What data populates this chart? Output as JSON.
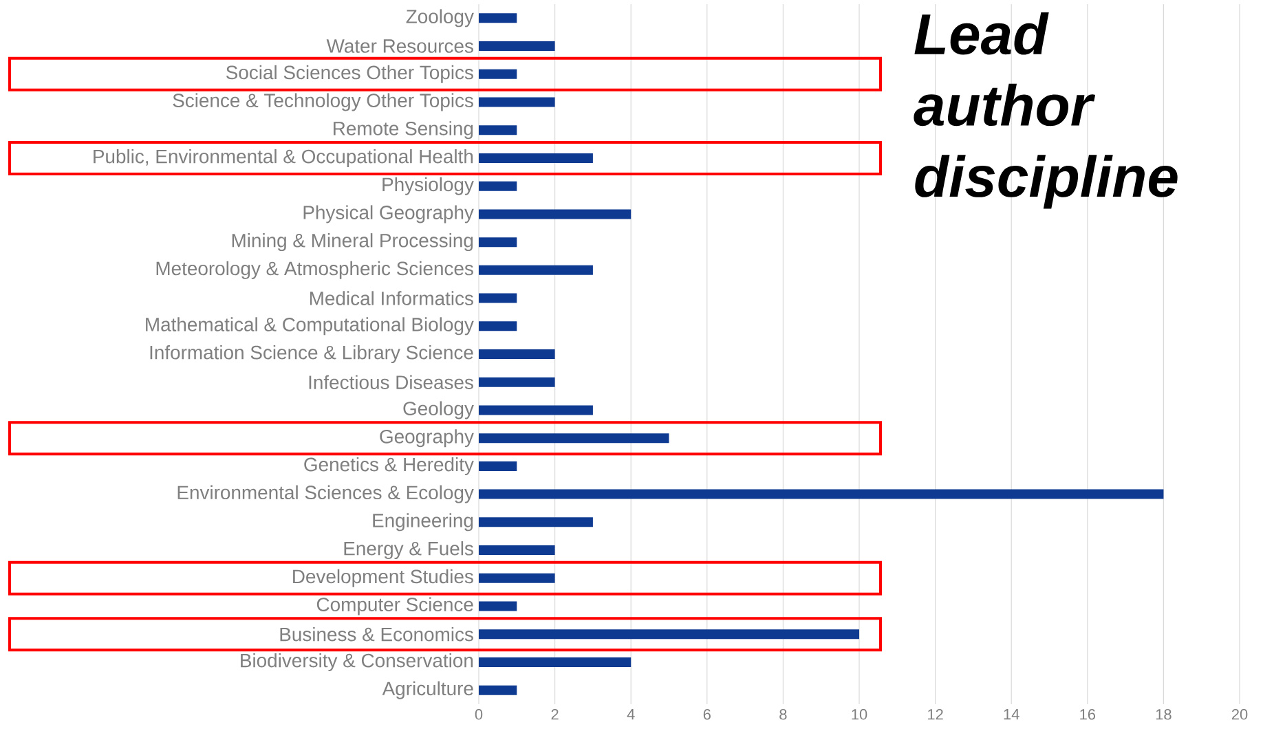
{
  "chart_data": {
    "type": "bar",
    "orientation": "horizontal",
    "title": "Lead author discipline",
    "categories": [
      "Zoology",
      "Water Resources",
      "Social Sciences Other Topics",
      "Science & Technology Other Topics",
      "Remote Sensing",
      "Public, Environmental & Occupational Health",
      "Physiology",
      "Physical Geography",
      "Mining & Mineral Processing",
      "Meteorology & Atmospheric Sciences",
      "Medical Informatics",
      "Mathematical & Computational Biology",
      "Information Science & Library Science",
      "Infectious Diseases",
      "Geology",
      "Geography",
      "Genetics & Heredity",
      "Environmental Sciences & Ecology",
      "Engineering",
      "Energy & Fuels",
      "Development Studies",
      "Computer Science",
      "Business & Economics",
      "Biodiversity & Conservation",
      "Agriculture"
    ],
    "values": [
      1,
      2,
      1,
      2,
      1,
      3,
      1,
      4,
      1,
      3,
      1,
      1,
      2,
      2,
      3,
      5,
      1,
      18,
      3,
      2,
      2,
      1,
      10,
      4,
      1
    ],
    "color": "#0e3a91",
    "xlim": [
      0,
      20
    ],
    "xticks": [
      0,
      2,
      4,
      6,
      8,
      10,
      12,
      14,
      16,
      18,
      20
    ],
    "grid": "x"
  }
}
